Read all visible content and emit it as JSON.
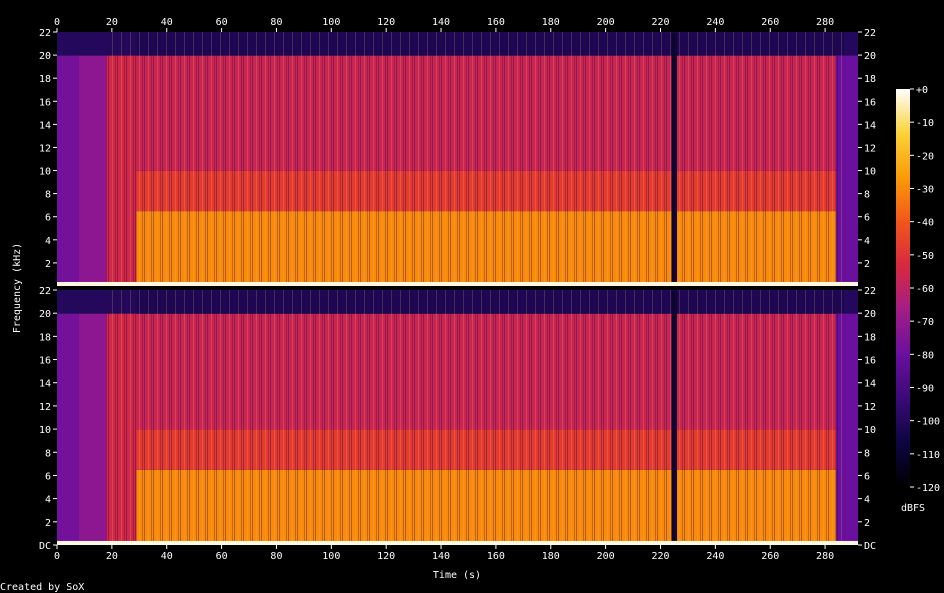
{
  "chart_data": {
    "type": "heatmap",
    "subtype": "spectrogram",
    "channels": 2,
    "xlabel": "Time (s)",
    "ylabel": "Frequency (kHz)",
    "x_ticks": [
      0,
      20,
      40,
      60,
      80,
      100,
      120,
      140,
      160,
      180,
      200,
      220,
      240,
      260,
      280
    ],
    "x_range": [
      0,
      292
    ],
    "y_ticks": [
      "DC",
      "2",
      "4",
      "6",
      "8",
      "10",
      "12",
      "14",
      "16",
      "18",
      "20",
      "22"
    ],
    "y_range_khz": [
      0,
      22.05
    ],
    "colorbar": {
      "label": "dBFS",
      "ticks": [
        "+0",
        "-10",
        "-20",
        "-30",
        "-40",
        "-50",
        "-60",
        "-70",
        "-80",
        "-90",
        "-100",
        "-110",
        "-120"
      ],
      "range": [
        -120,
        0
      ],
      "colors": [
        "#000000",
        "#0d0540",
        "#3a0a78",
        "#6a0f9e",
        "#a31d86",
        "#d8283f",
        "#f3551c",
        "#fb9b06",
        "#fbd239",
        "#ffffff"
      ]
    },
    "spectral_regions": [
      {
        "t": [
          0,
          8
        ],
        "f_khz": [
          0,
          20
        ],
        "level_db": -78
      },
      {
        "t": [
          8,
          18
        ],
        "f_khz": [
          0,
          20
        ],
        "level_db": -72
      },
      {
        "t": [
          18,
          29
        ],
        "f_khz": [
          0,
          20
        ],
        "level_db": -55
      },
      {
        "t": [
          29,
          287
        ],
        "f_khz": [
          0,
          6.5
        ],
        "level_db": -30
      },
      {
        "t": [
          29,
          287
        ],
        "f_khz": [
          6.5,
          10
        ],
        "level_db": -48
      },
      {
        "t": [
          29,
          287
        ],
        "f_khz": [
          10,
          20
        ],
        "level_db": -57
      },
      {
        "t": [
          29,
          287
        ],
        "f_khz": [
          20,
          22
        ],
        "level_db": -102
      },
      {
        "t": [
          224,
          226
        ],
        "f_khz": [
          0,
          22
        ],
        "level_db": -110
      },
      {
        "t": [
          284,
          292
        ],
        "f_khz": [
          0,
          20
        ],
        "level_db": -80
      }
    ]
  },
  "footer": {
    "credit": "Created by SoX"
  }
}
